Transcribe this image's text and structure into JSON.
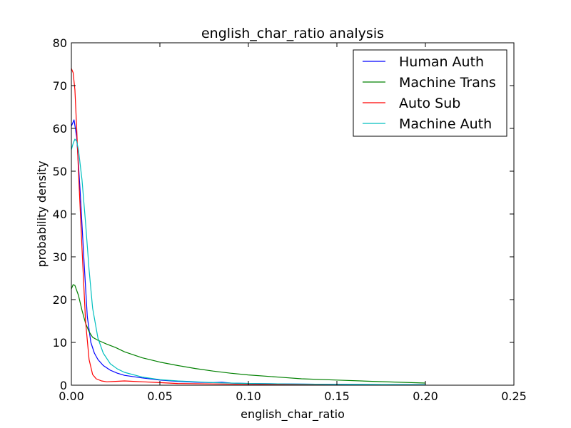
{
  "chart_data": {
    "type": "line",
    "title": "english_char_ratio analysis",
    "xlabel": "english_char_ratio",
    "ylabel": "probability density",
    "xlim": [
      0.0,
      0.25
    ],
    "ylim": [
      0,
      80
    ],
    "x_ticks": [
      0.0,
      0.05,
      0.1,
      0.15,
      0.2,
      0.25
    ],
    "x_tick_labels": [
      "0.00",
      "0.05",
      "0.10",
      "0.15",
      "0.20",
      "0.25"
    ],
    "y_ticks": [
      0,
      10,
      20,
      30,
      40,
      50,
      60,
      70,
      80
    ],
    "y_tick_labels": [
      "0",
      "10",
      "20",
      "30",
      "40",
      "50",
      "60",
      "70",
      "80"
    ],
    "grid": false,
    "legend_position": "top-right",
    "series": [
      {
        "name": "Human Auth",
        "color": "#0000ff",
        "x": [
          0.0,
          0.0015,
          0.003,
          0.005,
          0.007,
          0.009,
          0.011,
          0.013,
          0.015,
          0.018,
          0.022,
          0.026,
          0.03,
          0.04,
          0.05,
          0.06,
          0.07,
          0.08,
          0.085,
          0.09,
          0.1,
          0.12,
          0.15,
          0.2
        ],
        "y": [
          60.5,
          62,
          58,
          45,
          30,
          16,
          10,
          7.5,
          6,
          4.6,
          3.5,
          2.8,
          2.3,
          1.7,
          1.2,
          0.9,
          0.7,
          0.6,
          0.7,
          0.5,
          0.4,
          0.3,
          0.2,
          0.1
        ]
      },
      {
        "name": "Machine Trans",
        "color": "#008000",
        "x": [
          0.0,
          0.001,
          0.002,
          0.004,
          0.006,
          0.008,
          0.01,
          0.012,
          0.015,
          0.02,
          0.025,
          0.03,
          0.04,
          0.05,
          0.06,
          0.07,
          0.08,
          0.09,
          0.1,
          0.12,
          0.13,
          0.15,
          0.17,
          0.2
        ],
        "y": [
          22.5,
          23.5,
          23.3,
          21,
          17.5,
          14.5,
          12.5,
          11.2,
          10.5,
          9.6,
          8.8,
          7.8,
          6.4,
          5.4,
          4.6,
          3.9,
          3.3,
          2.8,
          2.4,
          1.8,
          1.5,
          1.2,
          0.9,
          0.5
        ]
      },
      {
        "name": "Auto Sub",
        "color": "#ff0000",
        "x": [
          0.0,
          0.001,
          0.002,
          0.003,
          0.004,
          0.006,
          0.008,
          0.01,
          0.012,
          0.014,
          0.017,
          0.02,
          0.025,
          0.03,
          0.035,
          0.04,
          0.05,
          0.06,
          0.08,
          0.1,
          0.15,
          0.2
        ],
        "y": [
          74,
          73,
          69,
          60,
          50,
          32,
          15,
          6,
          2.5,
          1.5,
          1.0,
          0.8,
          0.9,
          1.0,
          0.9,
          0.8,
          0.6,
          0.4,
          0.3,
          0.2,
          0.1,
          0.05
        ]
      },
      {
        "name": "Machine Auth",
        "color": "#00bfbf",
        "x": [
          0.0,
          0.001,
          0.002,
          0.003,
          0.004,
          0.006,
          0.008,
          0.01,
          0.012,
          0.015,
          0.018,
          0.022,
          0.026,
          0.03,
          0.04,
          0.05,
          0.06,
          0.07,
          0.08,
          0.1,
          0.12,
          0.15,
          0.2
        ],
        "y": [
          55,
          56.5,
          57.5,
          57,
          55,
          48,
          38,
          27,
          18,
          11,
          7.5,
          5,
          3.8,
          3.0,
          1.9,
          1.3,
          1.0,
          0.8,
          0.6,
          0.4,
          0.3,
          0.2,
          0.1
        ]
      }
    ]
  }
}
